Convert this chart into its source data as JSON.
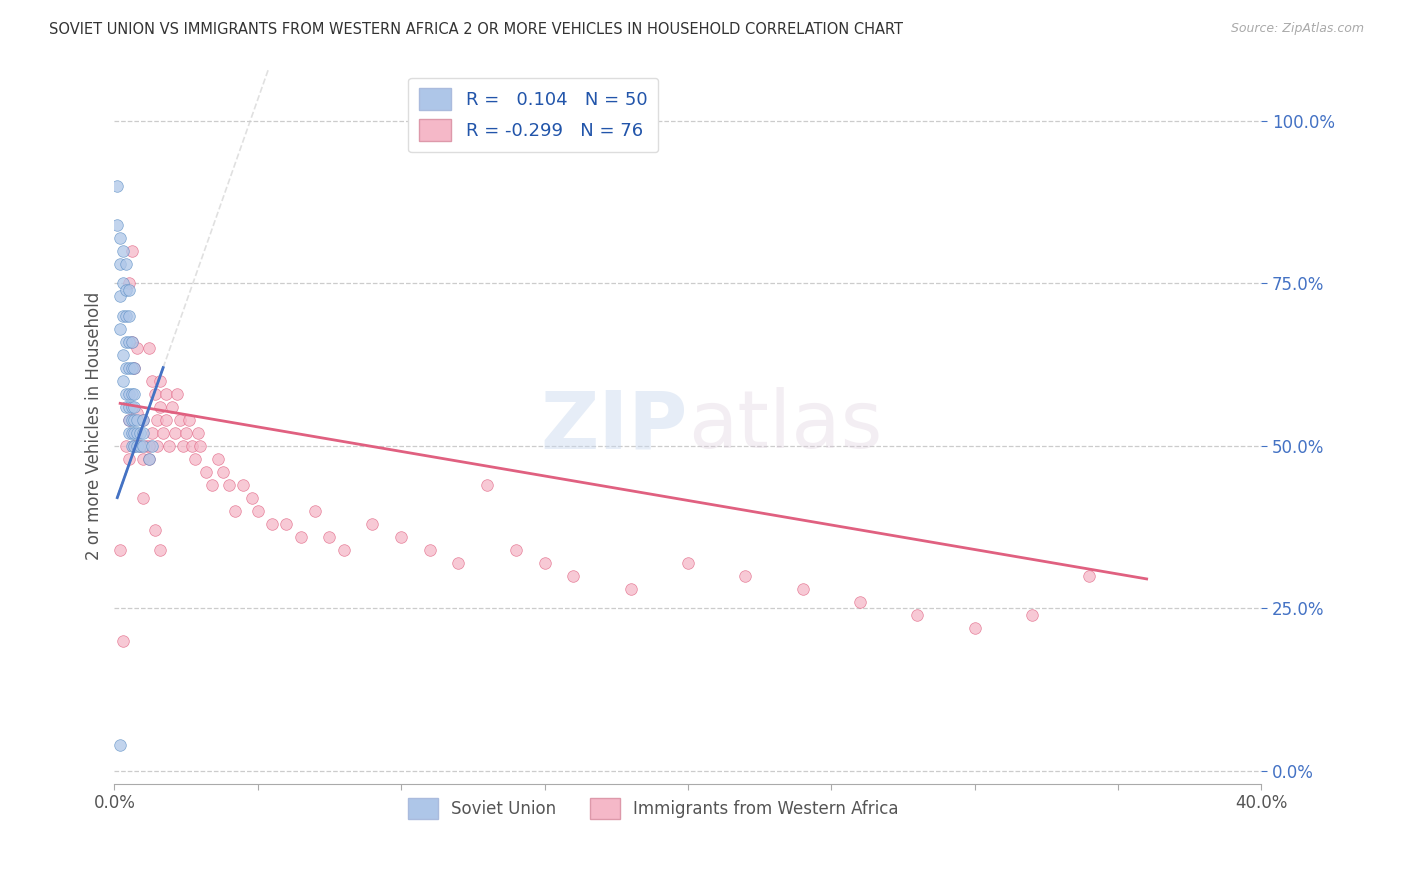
{
  "title": "SOVIET UNION VS IMMIGRANTS FROM WESTERN AFRICA 2 OR MORE VEHICLES IN HOUSEHOLD CORRELATION CHART",
  "source": "Source: ZipAtlas.com",
  "ylabel": "2 or more Vehicles in Household",
  "xlim": [
    0.0,
    0.4
  ],
  "ylim": [
    -0.02,
    1.08
  ],
  "xtick_positions": [
    0.0,
    0.05,
    0.1,
    0.15,
    0.2,
    0.25,
    0.3,
    0.35,
    0.4
  ],
  "xticklabels": [
    "0.0%",
    "",
    "",
    "",
    "",
    "",
    "",
    "",
    "40.0%"
  ],
  "ytick_positions": [
    0.0,
    0.25,
    0.5,
    0.75,
    1.0
  ],
  "ytick_labels_right": [
    "0.0%",
    "25.0%",
    "50.0%",
    "75.0%",
    "100.0%"
  ],
  "R_soviet": 0.104,
  "N_soviet": 50,
  "R_western": -0.299,
  "N_western": 76,
  "watermark_zip": "ZIP",
  "watermark_atlas": "atlas",
  "blue_dot_color": "#aec6e8",
  "blue_dot_edge": "#5b8ec4",
  "blue_line_color": "#4472c4",
  "pink_dot_color": "#f5b8c8",
  "pink_dot_edge": "#e06080",
  "pink_line_color": "#e06080",
  "grid_color": "#cccccc",
  "bg_color": "#ffffff",
  "dot_size": 70,
  "dot_alpha": 0.75,
  "soviet_x": [
    0.002,
    0.001,
    0.001,
    0.002,
    0.002,
    0.002,
    0.002,
    0.003,
    0.003,
    0.003,
    0.003,
    0.003,
    0.004,
    0.004,
    0.004,
    0.004,
    0.004,
    0.004,
    0.004,
    0.005,
    0.005,
    0.005,
    0.005,
    0.005,
    0.005,
    0.005,
    0.005,
    0.006,
    0.006,
    0.006,
    0.006,
    0.006,
    0.006,
    0.006,
    0.007,
    0.007,
    0.007,
    0.007,
    0.007,
    0.007,
    0.008,
    0.008,
    0.008,
    0.009,
    0.009,
    0.01,
    0.01,
    0.01,
    0.012,
    0.013
  ],
  "soviet_y": [
    0.04,
    0.84,
    0.9,
    0.68,
    0.73,
    0.78,
    0.82,
    0.6,
    0.64,
    0.7,
    0.75,
    0.8,
    0.56,
    0.58,
    0.62,
    0.66,
    0.7,
    0.74,
    0.78,
    0.52,
    0.54,
    0.56,
    0.58,
    0.62,
    0.66,
    0.7,
    0.74,
    0.5,
    0.52,
    0.54,
    0.56,
    0.58,
    0.62,
    0.66,
    0.5,
    0.52,
    0.54,
    0.56,
    0.58,
    0.62,
    0.5,
    0.52,
    0.54,
    0.5,
    0.52,
    0.5,
    0.52,
    0.54,
    0.48,
    0.5
  ],
  "western_x": [
    0.002,
    0.003,
    0.004,
    0.005,
    0.005,
    0.006,
    0.007,
    0.007,
    0.008,
    0.009,
    0.01,
    0.01,
    0.011,
    0.012,
    0.012,
    0.013,
    0.013,
    0.014,
    0.015,
    0.015,
    0.016,
    0.016,
    0.017,
    0.018,
    0.018,
    0.019,
    0.02,
    0.021,
    0.022,
    0.023,
    0.024,
    0.025,
    0.026,
    0.027,
    0.028,
    0.029,
    0.03,
    0.032,
    0.034,
    0.036,
    0.038,
    0.04,
    0.042,
    0.045,
    0.048,
    0.05,
    0.055,
    0.06,
    0.065,
    0.07,
    0.075,
    0.08,
    0.09,
    0.1,
    0.11,
    0.12,
    0.13,
    0.14,
    0.15,
    0.16,
    0.18,
    0.2,
    0.22,
    0.24,
    0.26,
    0.28,
    0.3,
    0.32,
    0.34,
    0.005,
    0.006,
    0.008,
    0.01,
    0.012,
    0.014,
    0.016
  ],
  "western_y": [
    0.34,
    0.2,
    0.5,
    0.48,
    0.54,
    0.66,
    0.62,
    0.5,
    0.55,
    0.5,
    0.48,
    0.54,
    0.5,
    0.48,
    0.65,
    0.6,
    0.52,
    0.58,
    0.54,
    0.5,
    0.56,
    0.6,
    0.52,
    0.58,
    0.54,
    0.5,
    0.56,
    0.52,
    0.58,
    0.54,
    0.5,
    0.52,
    0.54,
    0.5,
    0.48,
    0.52,
    0.5,
    0.46,
    0.44,
    0.48,
    0.46,
    0.44,
    0.4,
    0.44,
    0.42,
    0.4,
    0.38,
    0.38,
    0.36,
    0.4,
    0.36,
    0.34,
    0.38,
    0.36,
    0.34,
    0.32,
    0.44,
    0.34,
    0.32,
    0.3,
    0.28,
    0.32,
    0.3,
    0.28,
    0.26,
    0.24,
    0.22,
    0.24,
    0.3,
    0.75,
    0.8,
    0.65,
    0.42,
    0.5,
    0.37,
    0.34
  ],
  "soviet_trend_x0": 0.001,
  "soviet_trend_x1": 0.017,
  "soviet_trend_y0": 0.42,
  "soviet_trend_y1": 0.62,
  "western_trend_x0": 0.002,
  "western_trend_x1": 0.36,
  "western_trend_y0": 0.565,
  "western_trend_y1": 0.295
}
